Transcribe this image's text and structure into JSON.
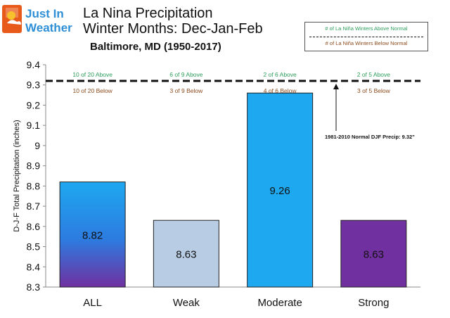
{
  "logo": {
    "line1": "Just In",
    "line2": "Weather"
  },
  "header": {
    "title_line1": "La Nina Precipitation",
    "title_line2": "Winter Months: Dec-Jan-Feb",
    "subtitle": "Baltimore, MD (1950-2017)"
  },
  "legend": {
    "above_label": "# of La Niña Winters Above Normal",
    "below_label": "# of La Niña Winters Below Normal",
    "above_color": "#2e9e5b",
    "below_color": "#8b4a1c"
  },
  "chart_data": {
    "type": "bar",
    "title": "La Nina Precipitation Winter Months: Dec-Jan-Feb",
    "subtitle": "Baltimore, MD (1950-2017)",
    "categories": [
      "ALL",
      "Weak",
      "Moderate",
      "Strong"
    ],
    "values": [
      8.82,
      8.63,
      9.26,
      8.63
    ],
    "value_labels": [
      "8.82",
      "8.63",
      "9.26",
      "8.63"
    ],
    "ylabel": "D-J-F Total Precipitation (inches)",
    "xlabel": "",
    "ylim": [
      8.3,
      9.4
    ],
    "yticks": [
      8.3,
      8.4,
      8.5,
      8.6,
      8.7,
      8.8,
      8.9,
      9,
      9.1,
      9.2,
      9.3,
      9.4
    ],
    "grid": false,
    "normal_line": {
      "value": 9.32,
      "label": "1981-2010  Normal DJF Precip: 9.32\""
    },
    "above_counts": [
      "10 of 20 Above",
      "6 of 9 Above",
      "2 of 6 Above",
      "2 of 5 Above"
    ],
    "below_counts": [
      "10 of 20 Below",
      "3 of 9 Below",
      "4 of 6 Below",
      "3 of 5 Below"
    ],
    "bar_colors": [
      "gradient-blue-purple",
      "#b8cce4",
      "#1ea8f0",
      "#7030a0"
    ]
  }
}
